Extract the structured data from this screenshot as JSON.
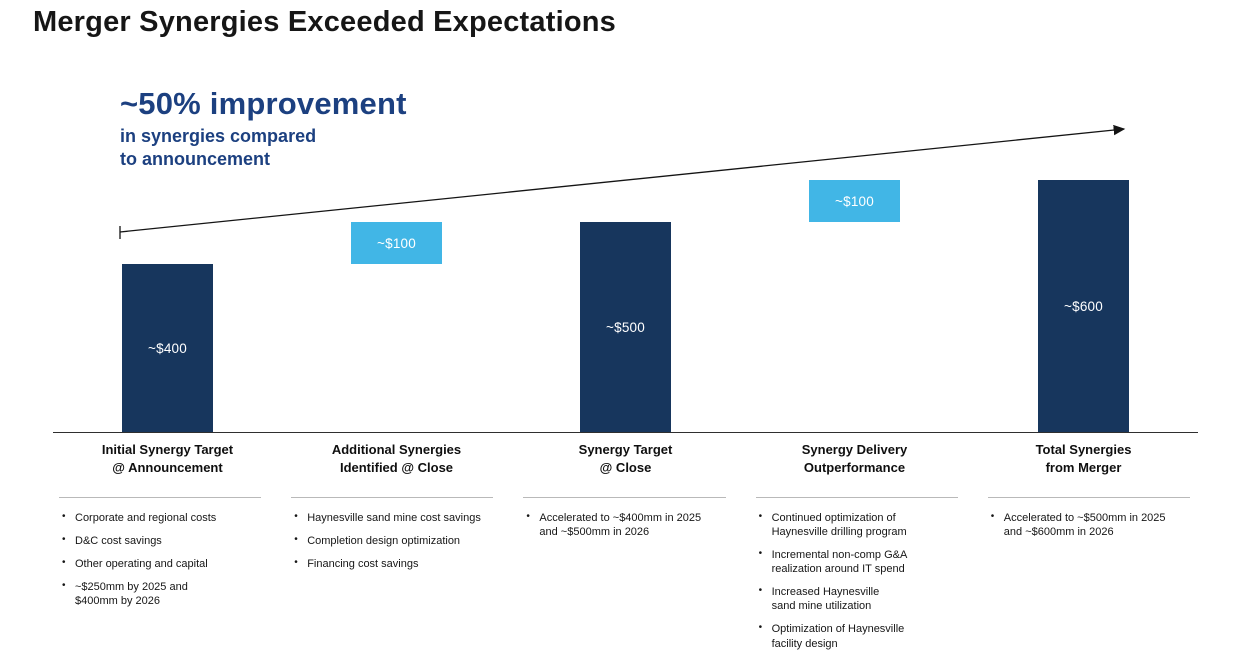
{
  "slide": {
    "title": "Merger Synergies Exceeded Expectations"
  },
  "highlight": {
    "headline": "~50% improvement",
    "subtext": "in synergies compared\nto announcement"
  },
  "colors": {
    "navy": "#17365D",
    "light_blue": "#41B6E6",
    "headline_blue": "#1C4080"
  },
  "chart_data": {
    "type": "bar",
    "subtype": "waterfall",
    "title": "Merger Synergies Exceeded Expectations",
    "unit": "$mm",
    "ylim": [
      0,
      600
    ],
    "ymax": 600,
    "grid": false,
    "annotation_arrow": "upward trend arrow from first bar top to last bar top",
    "columns": [
      {
        "label": "Initial Synergy Target\n@ Announcement",
        "value_label": "~$400",
        "start": 0,
        "end": 400,
        "color": "navy",
        "bullets": [
          "Corporate and regional costs",
          "D&C cost savings",
          "Other operating and capital",
          "~$250mm by 2025 and\n$400mm by 2026"
        ]
      },
      {
        "label": "Additional Synergies\nIdentified @ Close",
        "value_label": "~$100",
        "start": 400,
        "end": 500,
        "color": "light_blue",
        "bullets": [
          "Haynesville sand mine cost savings",
          "Completion design optimization",
          "Financing cost savings"
        ]
      },
      {
        "label": "Synergy Target\n@ Close",
        "value_label": "~$500",
        "start": 0,
        "end": 500,
        "color": "navy",
        "bullets": [
          "Accelerated to ~$400mm in 2025\nand ~$500mm in 2026"
        ]
      },
      {
        "label": "Synergy Delivery\nOutperformance",
        "value_label": "~$100",
        "start": 500,
        "end": 600,
        "color": "light_blue",
        "bullets": [
          "Continued optimization of\nHaynesville drilling program",
          "Incremental non-comp G&A\nrealization around IT spend",
          "Increased Haynesville\nsand mine utilization",
          "Optimization of Haynesville\nfacility design"
        ]
      },
      {
        "label": "Total Synergies\nfrom Merger",
        "value_label": "~$600",
        "start": 0,
        "end": 600,
        "color": "navy",
        "bullets": [
          "Accelerated to ~$500mm in 2025\nand ~$600mm in 2026"
        ]
      }
    ]
  }
}
